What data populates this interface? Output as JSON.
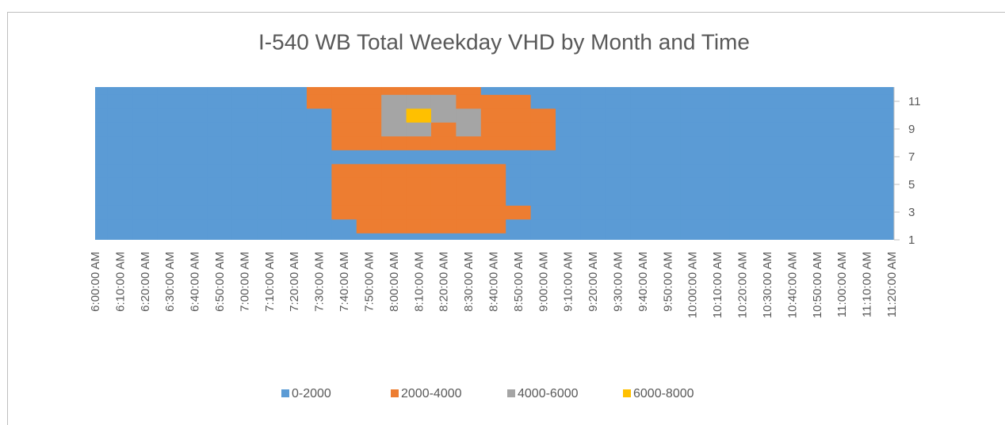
{
  "chart_data": {
    "type": "contour",
    "title": "I-540 WB Total Weekday VHD by Month and Time",
    "categories": [
      "6:00:00 AM",
      "6:10:00 AM",
      "6:20:00 AM",
      "6:30:00 AM",
      "6:40:00 AM",
      "6:50:00 AM",
      "7:00:00 AM",
      "7:10:00 AM",
      "7:20:00 AM",
      "7:30:00 AM",
      "7:40:00 AM",
      "7:50:00 AM",
      "8:00:00 AM",
      "8:10:00 AM",
      "8:20:00 AM",
      "8:30:00 AM",
      "8:40:00 AM",
      "8:50:00 AM",
      "9:00:00 AM",
      "9:10:00 AM",
      "9:20:00 AM",
      "9:30:00 AM",
      "9:40:00 AM",
      "9:50:00 AM",
      "10:00:00 AM",
      "10:10:00 AM",
      "10:20:00 AM",
      "10:30:00 AM",
      "10:40:00 AM",
      "10:50:00 AM",
      "11:00:00 AM",
      "11:10:00 AM",
      "11:20:00 AM"
    ],
    "y": [
      1,
      2,
      3,
      4,
      5,
      6,
      7,
      8,
      9,
      10,
      11,
      12
    ],
    "ylim": [
      1,
      12
    ],
    "yticks": [
      1,
      3,
      5,
      7,
      9,
      11
    ],
    "levels": [
      0,
      2000,
      4000,
      6000,
      8000
    ],
    "series": [
      {
        "name": "0-2000",
        "color": "#5b9bd5"
      },
      {
        "name": "2000-4000",
        "color": "#ed7d31"
      },
      {
        "name": "4000-6000",
        "color": "#a5a5a5"
      },
      {
        "name": "6000-8000",
        "color": "#ffc000"
      }
    ],
    "z": [
      [
        200,
        200,
        200,
        200,
        200,
        200,
        200,
        500,
        800,
        1200,
        1500,
        1700,
        1800,
        1800,
        1700,
        1600,
        1400,
        1200,
        1000,
        900,
        800,
        700,
        600,
        500,
        400,
        300,
        300,
        200,
        200,
        200,
        200,
        200,
        200
      ],
      [
        200,
        200,
        200,
        200,
        200,
        200,
        200,
        600,
        1000,
        1500,
        1900,
        2100,
        2300,
        2400,
        2300,
        2200,
        2100,
        1500,
        1200,
        1000,
        800,
        700,
        600,
        500,
        400,
        300,
        300,
        200,
        200,
        200,
        200,
        200,
        200
      ],
      [
        200,
        200,
        200,
        200,
        200,
        200,
        200,
        700,
        1200,
        1800,
        2300,
        2800,
        3000,
        3000,
        2900,
        2700,
        2500,
        2200,
        1800,
        1400,
        1100,
        900,
        800,
        700,
        600,
        500,
        400,
        300,
        300,
        200,
        200,
        200,
        200
      ],
      [
        200,
        200,
        200,
        200,
        200,
        200,
        200,
        700,
        1200,
        1800,
        2300,
        2700,
        2900,
        2800,
        2600,
        2400,
        2100,
        1600,
        1400,
        1200,
        1000,
        900,
        800,
        700,
        600,
        500,
        400,
        300,
        300,
        200,
        200,
        200,
        200
      ],
      [
        200,
        200,
        200,
        200,
        200,
        200,
        200,
        600,
        1100,
        1800,
        2400,
        2900,
        3200,
        3300,
        3100,
        2800,
        2300,
        1700,
        1400,
        1100,
        900,
        800,
        700,
        600,
        500,
        400,
        300,
        300,
        200,
        200,
        200,
        200,
        200
      ],
      [
        200,
        200,
        200,
        200,
        200,
        200,
        200,
        600,
        1100,
        1800,
        2200,
        2600,
        2800,
        2800,
        2600,
        2300,
        2100,
        1600,
        1200,
        1000,
        800,
        700,
        600,
        500,
        400,
        300,
        300,
        200,
        200,
        200,
        200,
        200,
        200
      ],
      [
        200,
        200,
        200,
        200,
        200,
        200,
        200,
        500,
        900,
        1300,
        1500,
        1600,
        1700,
        1700,
        1700,
        1600,
        1600,
        1500,
        1400,
        1300,
        1200,
        1100,
        1000,
        900,
        800,
        600,
        500,
        400,
        300,
        200,
        200,
        200,
        200
      ],
      [
        200,
        200,
        200,
        200,
        200,
        200,
        200,
        600,
        1100,
        1800,
        2500,
        3000,
        3500,
        3800,
        3900,
        3700,
        3300,
        2800,
        2200,
        1700,
        1400,
        1200,
        1000,
        800,
        600,
        500,
        400,
        300,
        300,
        200,
        200,
        200,
        200
      ],
      [
        200,
        200,
        200,
        200,
        200,
        200,
        200,
        600,
        1100,
        1800,
        2600,
        3300,
        4000,
        4200,
        3800,
        4100,
        3600,
        3000,
        2400,
        1800,
        1500,
        1300,
        1100,
        900,
        700,
        500,
        400,
        300,
        300,
        200,
        200,
        200,
        200
      ],
      [
        200,
        200,
        200,
        200,
        200,
        200,
        200,
        700,
        1300,
        1900,
        2700,
        3600,
        4500,
        6100,
        5200,
        4600,
        3700,
        2900,
        2300,
        1800,
        1400,
        1200,
        1000,
        800,
        600,
        500,
        400,
        300,
        300,
        200,
        200,
        200,
        200
      ],
      [
        200,
        200,
        200,
        200,
        200,
        200,
        200,
        800,
        1400,
        2200,
        3000,
        3600,
        4200,
        4400,
        4100,
        3500,
        2800,
        2200,
        1800,
        1400,
        1200,
        1000,
        800,
        700,
        600,
        500,
        400,
        300,
        300,
        200,
        200,
        200,
        200
      ],
      [
        200,
        200,
        200,
        200,
        200,
        200,
        200,
        700,
        1200,
        2100,
        2400,
        2600,
        2700,
        2600,
        2400,
        2200,
        1900,
        1600,
        1400,
        1200,
        1000,
        900,
        800,
        700,
        600,
        500,
        400,
        300,
        300,
        200,
        200,
        200,
        200
      ]
    ]
  }
}
